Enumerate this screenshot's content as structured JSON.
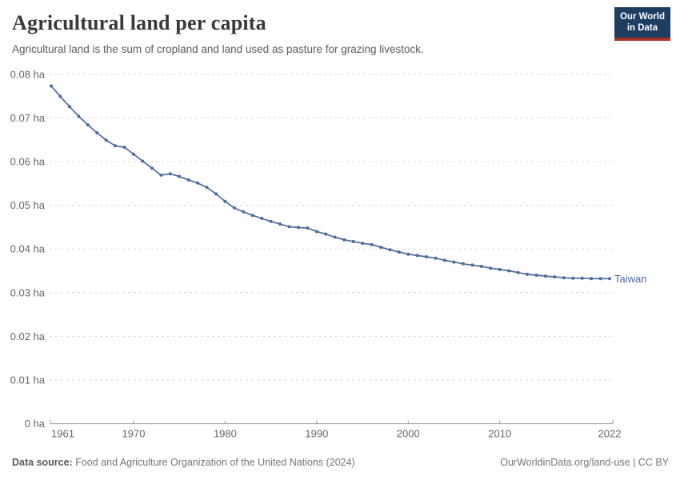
{
  "header": {
    "title": "Agricultural land per capita",
    "subtitle": "Agricultural land is the sum of cropland and land used as pasture for grazing livestock.",
    "logo_line1": "Our World",
    "logo_line2": "in Data"
  },
  "chart_data": {
    "type": "line",
    "title": "Agricultural land per capita",
    "unit": "ha",
    "xlabel": "",
    "ylabel": "",
    "xlim": [
      1961,
      2022
    ],
    "ylim": [
      0,
      0.08
    ],
    "grid": "horizontal-dashed",
    "legend_position": "end-of-line",
    "x": [
      1961,
      1962,
      1963,
      1964,
      1965,
      1966,
      1967,
      1968,
      1969,
      1970,
      1971,
      1972,
      1973,
      1974,
      1975,
      1976,
      1977,
      1978,
      1979,
      1980,
      1981,
      1982,
      1983,
      1984,
      1985,
      1986,
      1987,
      1988,
      1989,
      1990,
      1991,
      1992,
      1993,
      1994,
      1995,
      1996,
      1997,
      1998,
      1999,
      2000,
      2001,
      2002,
      2003,
      2004,
      2005,
      2006,
      2007,
      2008,
      2009,
      2010,
      2011,
      2012,
      2013,
      2014,
      2015,
      2016,
      2017,
      2018,
      2019,
      2020,
      2021,
      2022
    ],
    "series": [
      {
        "name": "Taiwan",
        "color": "#4C6A9C",
        "values": [
          0.0773,
          0.0749,
          0.0726,
          0.0704,
          0.0684,
          0.0666,
          0.0649,
          0.0636,
          0.0633,
          0.0617,
          0.0601,
          0.0585,
          0.0569,
          0.0572,
          0.0566,
          0.0558,
          0.0551,
          0.0541,
          0.0526,
          0.0509,
          0.0494,
          0.0485,
          0.0477,
          0.047,
          0.0463,
          0.0457,
          0.0451,
          0.0449,
          0.0448,
          0.044,
          0.0434,
          0.0427,
          0.0421,
          0.0417,
          0.0413,
          0.041,
          0.0404,
          0.0398,
          0.0393,
          0.0388,
          0.0385,
          0.0382,
          0.0379,
          0.0374,
          0.037,
          0.0366,
          0.0363,
          0.036,
          0.0356,
          0.0353,
          0.035,
          0.0346,
          0.0342,
          0.034,
          0.0338,
          0.0336,
          0.0334,
          0.0333,
          0.0333,
          0.0332,
          0.0332,
          0.0332
        ]
      }
    ],
    "x_ticks": [
      1961,
      1970,
      1980,
      1990,
      2000,
      2010,
      2022
    ],
    "y_ticks": [
      0,
      0.01,
      0.02,
      0.03,
      0.04,
      0.05,
      0.06,
      0.07,
      0.08
    ],
    "y_tick_labels": [
      "0 ha",
      "0.01 ha",
      "0.02 ha",
      "0.03 ha",
      "0.04 ha",
      "0.05 ha",
      "0.06 ha",
      "0.07 ha",
      "0.08 ha"
    ]
  },
  "footer": {
    "source_label": "Data source:",
    "source_text": " Food and Agriculture Organization of the United Nations (2024)",
    "credit": "OurWorldinData.org/land-use | CC BY"
  },
  "colors": {
    "series_blue": "#4C6A9C",
    "gridline": "#d7d7d7",
    "axis_line": "#9e9e9e",
    "tick_text": "#666666",
    "logo_bg": "#1d3d63",
    "logo_red": "#a8342a"
  }
}
